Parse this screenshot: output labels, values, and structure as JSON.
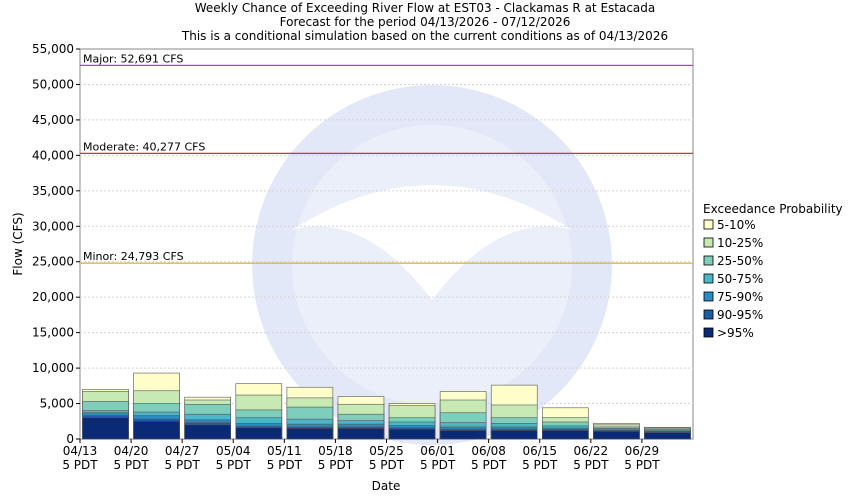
{
  "chart_data": {
    "type": "bar",
    "stacked": true,
    "title_lines": [
      "Weekly Chance of Exceeding River Flow at EST03 - Clackamas R at Estacada",
      "Forecast for the period 04/13/2026 - 07/12/2026",
      "This is a conditional simulation based on the current conditions as of 04/13/2026"
    ],
    "xlabel": "Date",
    "ylabel": "Flow (CFS)",
    "ylim": [
      0,
      55000
    ],
    "y_ticks": [
      "0",
      "5,000",
      "10,000",
      "15,000",
      "20,000",
      "25,000",
      "30,000",
      "35,000",
      "40,000",
      "45,000",
      "50,000",
      "55,000"
    ],
    "categories": [
      [
        "04/13",
        "5 PDT"
      ],
      [
        "04/20",
        "5 PDT"
      ],
      [
        "04/27",
        "5 PDT"
      ],
      [
        "05/04",
        "5 PDT"
      ],
      [
        "05/11",
        "5 PDT"
      ],
      [
        "05/18",
        "5 PDT"
      ],
      [
        "05/25",
        "5 PDT"
      ],
      [
        "06/01",
        "5 PDT"
      ],
      [
        "06/08",
        "5 PDT"
      ],
      [
        "06/15",
        "5 PDT"
      ],
      [
        "06/22",
        "5 PDT"
      ],
      [
        "06/29",
        "5 PDT"
      ]
    ],
    "legend_title": "Exceedance Probability",
    "legend_position": "right",
    "series": [
      {
        "name": ">95%",
        "color": "#0a2a78",
        "values": [
          3000,
          2500,
          2000,
          1600,
          1500,
          1500,
          1400,
          1200,
          1200,
          1200,
          1100,
          900
        ]
      },
      {
        "name": "90-95%",
        "color": "#1f5ca8",
        "values": [
          3300,
          2800,
          2300,
          1800,
          1700,
          1700,
          1600,
          1400,
          1400,
          1350,
          1200,
          1000
        ]
      },
      {
        "name": "75-90%",
        "color": "#2b8cc4",
        "values": [
          3700,
          3300,
          2700,
          2200,
          2100,
          2100,
          1900,
          1700,
          1700,
          1550,
          1300,
          1100
        ]
      },
      {
        "name": "50-75%",
        "color": "#4cb5c7",
        "values": [
          4000,
          3800,
          3500,
          3000,
          2800,
          2600,
          2400,
          2300,
          2200,
          1850,
          1500,
          1250
        ]
      },
      {
        "name": "25-50%",
        "color": "#7fcdbb",
        "values": [
          5300,
          5000,
          4900,
          4100,
          4500,
          3500,
          3000,
          3700,
          3000,
          2400,
          1700,
          1400
        ]
      },
      {
        "name": "10-25%",
        "color": "#c7e9b4",
        "values": [
          6700,
          6800,
          5500,
          6200,
          5800,
          4900,
          4700,
          5500,
          4800,
          3000,
          2000,
          1550
        ]
      },
      {
        "name": "5-10%",
        "color": "#ffffcc",
        "values": [
          7000,
          9300,
          5900,
          7800,
          7300,
          6000,
          5000,
          6700,
          7600,
          4400,
          2200,
          1650
        ]
      }
    ],
    "thresholds": [
      {
        "label": "Major: 52,691 CFS",
        "value": 52691,
        "color": "#cc33cc"
      },
      {
        "label": "Moderate: 40,277 CFS",
        "value": 40277,
        "color": "#cc3333"
      },
      {
        "label": "Minor: 24,793 CFS",
        "value": 24793,
        "color": "#d9b84a"
      }
    ],
    "grid": true
  }
}
